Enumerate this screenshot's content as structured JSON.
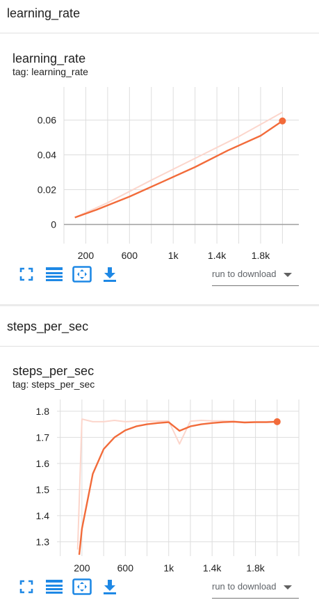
{
  "sections": [
    {
      "title": "learning_rate",
      "card": {
        "title": "learning_rate",
        "tag": "tag: learning_rate",
        "download_label": "run to download",
        "chart_data": {
          "type": "line",
          "x_ticks": [
            "200",
            "600",
            "1k",
            "1.4k",
            "1.8k"
          ],
          "x_tick_values": [
            200,
            600,
            1000,
            1400,
            1800
          ],
          "y_ticks": [
            "0",
            "0.02",
            "0.04",
            "0.06"
          ],
          "y_tick_values": [
            0,
            0.02,
            0.04,
            0.06
          ],
          "xlim": [
            0,
            2150
          ],
          "ylim": [
            -0.011,
            0.079
          ],
          "series": [
            {
              "role": "raw",
              "color": "#fcd6cc",
              "x": [
                100,
                400,
                800,
                1200,
                1600,
                2000
              ],
              "y": [
                0.004,
                0.0125,
                0.0255,
                0.038,
                0.0505,
                0.0645
              ]
            },
            {
              "role": "smoothed",
              "color": "#f26b3a",
              "x": [
                100,
                300,
                600,
                900,
                1200,
                1500,
                1800,
                2000
              ],
              "y": [
                0.004,
                0.0085,
                0.016,
                0.0245,
                0.033,
                0.0425,
                0.051,
                0.0595
              ]
            }
          ]
        }
      }
    },
    {
      "title": "steps_per_sec",
      "card": {
        "title": "steps_per_sec",
        "tag": "tag: steps_per_sec",
        "download_label": "run to download",
        "chart_data": {
          "type": "line",
          "x_ticks": [
            "200",
            "600",
            "1k",
            "1.4k",
            "1.8k"
          ],
          "x_tick_values": [
            200,
            600,
            1000,
            1400,
            1800
          ],
          "y_ticks": [
            "1.3",
            "1.4",
            "1.5",
            "1.6",
            "1.7",
            "1.8"
          ],
          "y_tick_values": [
            1.3,
            1.4,
            1.5,
            1.6,
            1.7,
            1.8
          ],
          "xlim": [
            -30,
            2200
          ],
          "ylim": [
            1.245,
            1.845
          ],
          "series": [
            {
              "role": "raw",
              "color": "#fcd6cc",
              "x": [
                160,
                200,
                300,
                400,
                500,
                600,
                700,
                800,
                900,
                1000,
                1100,
                1200,
                1300,
                1400,
                1500,
                1600,
                1700,
                1800,
                1900,
                2000
              ],
              "y": [
                1.27,
                1.77,
                1.76,
                1.76,
                1.765,
                1.76,
                1.762,
                1.762,
                1.762,
                1.763,
                1.675,
                1.762,
                1.765,
                1.763,
                1.763,
                1.762,
                1.758,
                1.76,
                1.76,
                1.762
              ]
            },
            {
              "role": "smoothed",
              "color": "#f26b3a",
              "x": [
                175,
                200,
                300,
                400,
                500,
                600,
                700,
                800,
                900,
                1000,
                1100,
                1200,
                1300,
                1400,
                1500,
                1600,
                1700,
                1800,
                1900,
                2000
              ],
              "y": [
                1.25,
                1.35,
                1.56,
                1.655,
                1.7,
                1.727,
                1.742,
                1.75,
                1.755,
                1.758,
                1.725,
                1.742,
                1.75,
                1.755,
                1.758,
                1.76,
                1.757,
                1.758,
                1.758,
                1.76
              ]
            }
          ]
        }
      }
    }
  ],
  "toolbar": {
    "icons": [
      "fullscreen-icon",
      "data-table-icon",
      "fit-domain-icon",
      "download-icon"
    ],
    "accent": "#1e88e5"
  }
}
